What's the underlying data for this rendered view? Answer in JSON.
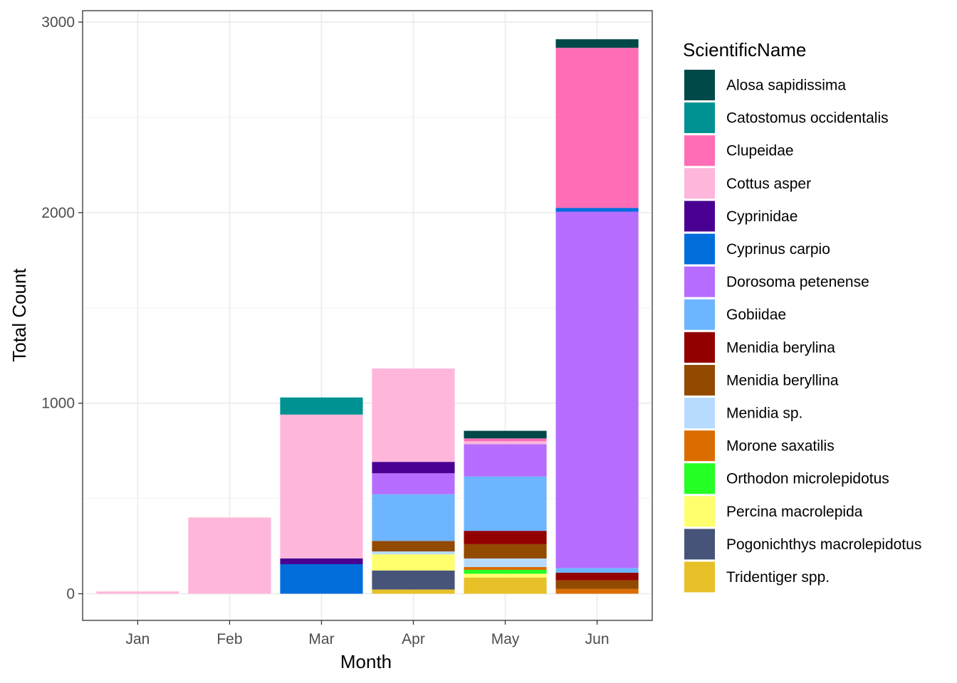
{
  "chart_data": {
    "type": "bar",
    "stacked": true,
    "title": "",
    "xlabel": "Month",
    "ylabel": "Total Count",
    "ylim": [
      -140,
      3060
    ],
    "yticks": [
      0,
      1000,
      2000,
      3000
    ],
    "grid": true,
    "legend_title": "ScientificName",
    "legend_position": "right",
    "categories": [
      "Jan",
      "Feb",
      "Mar",
      "Apr",
      "May",
      "Jun"
    ],
    "series": [
      {
        "name": "Alosa sapidissima",
        "color": "#004949",
        "values": [
          0,
          0,
          0,
          0,
          40,
          45
        ]
      },
      {
        "name": "Catostomus occidentalis",
        "color": "#009292",
        "values": [
          0,
          0,
          90,
          0,
          0,
          0
        ]
      },
      {
        "name": "Clupeidae",
        "color": "#FF6DB6",
        "values": [
          0,
          0,
          0,
          0,
          15,
          840
        ]
      },
      {
        "name": "Cottus asper",
        "color": "#FFB6DB",
        "values": [
          12,
          400,
          755,
          490,
          15,
          0
        ]
      },
      {
        "name": "Cyprinidae",
        "color": "#490092",
        "values": [
          0,
          0,
          30,
          60,
          0,
          0
        ]
      },
      {
        "name": "Cyprinus carpio",
        "color": "#006DDB",
        "values": [
          0,
          0,
          155,
          0,
          0,
          20
        ]
      },
      {
        "name": "Dorosoma petenense",
        "color": "#B66DFF",
        "values": [
          0,
          0,
          0,
          110,
          170,
          1870
        ]
      },
      {
        "name": "Gobiidae",
        "color": "#6DB6FF",
        "values": [
          0,
          0,
          0,
          245,
          285,
          25
        ]
      },
      {
        "name": "Menidia berylina",
        "color": "#920000",
        "values": [
          0,
          0,
          0,
          0,
          70,
          40
        ]
      },
      {
        "name": "Menidia beryllina",
        "color": "#924900",
        "values": [
          0,
          0,
          0,
          55,
          75,
          45
        ]
      },
      {
        "name": "Menidia sp.",
        "color": "#B6DBFF",
        "values": [
          0,
          0,
          0,
          15,
          45,
          0
        ]
      },
      {
        "name": "Morone saxatilis",
        "color": "#DB6D00",
        "values": [
          0,
          0,
          0,
          0,
          15,
          25
        ]
      },
      {
        "name": "Orthodon microlepidotus",
        "color": "#24FF24",
        "values": [
          0,
          0,
          0,
          0,
          20,
          0
        ]
      },
      {
        "name": "Percina macrolepida",
        "color": "#FFFF6D",
        "values": [
          0,
          0,
          0,
          85,
          20,
          0
        ]
      },
      {
        "name": "Pogonichthys macrolepidotus",
        "color": "#465479",
        "values": [
          0,
          0,
          0,
          100,
          0,
          0
        ]
      },
      {
        "name": "Tridentiger spp.",
        "color": "#E7C127",
        "values": [
          0,
          0,
          0,
          22,
          85,
          0
        ]
      }
    ]
  }
}
